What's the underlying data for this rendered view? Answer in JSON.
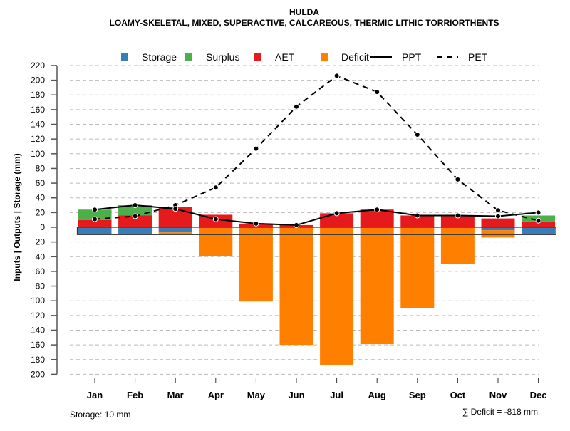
{
  "chart_data": {
    "type": "bar",
    "title": "HULDA",
    "subtitle": "LOAMY-SKELETAL, MIXED, SUPERACTIVE, CALCAREOUS, THERMIC LITHIC TORRIORTHENTS",
    "xlabel": "",
    "ylabel": "Inputs | Outputs | Storage    (mm)",
    "ylim": [
      -200,
      220
    ],
    "y_ticks": [
      "220",
      "200",
      "180",
      "160",
      "140",
      "120",
      "100",
      "80",
      "60",
      "40",
      "20",
      "0",
      "20",
      "40",
      "60",
      "80",
      "100",
      "120",
      "140",
      "160",
      "180",
      "200"
    ],
    "y_tick_values": [
      220,
      200,
      180,
      160,
      140,
      120,
      100,
      80,
      60,
      40,
      20,
      0,
      -20,
      -40,
      -60,
      -80,
      -100,
      -120,
      -140,
      -160,
      -180,
      -200
    ],
    "grid": true,
    "legend_position": "top",
    "categories": [
      "Jan",
      "Feb",
      "Mar",
      "Apr",
      "May",
      "Jun",
      "Jul",
      "Aug",
      "Sep",
      "Oct",
      "Nov",
      "Dec"
    ],
    "legend": [
      {
        "name": "Storage",
        "kind": "box",
        "color": "#377EB8"
      },
      {
        "name": "Surplus",
        "kind": "box",
        "color": "#4DAF4A"
      },
      {
        "name": "AET",
        "kind": "box",
        "color": "#E41A1C"
      },
      {
        "name": "Deficit",
        "kind": "box",
        "color": "#FF7F00"
      },
      {
        "name": "PPT",
        "kind": "solid-line",
        "color": "#000000"
      },
      {
        "name": "PET",
        "kind": "dashed-line",
        "color": "#000000"
      }
    ],
    "series": [
      {
        "name": "AET",
        "values": [
          10,
          16,
          28,
          17,
          5,
          3,
          19,
          24,
          16,
          15,
          12,
          8
        ]
      },
      {
        "name": "Surplus",
        "values": [
          14,
          14,
          0,
          0,
          0,
          0,
          0,
          0,
          0,
          0,
          0,
          8
        ]
      },
      {
        "name": "Storage",
        "values": [
          10,
          10,
          7,
          0,
          0,
          0,
          0,
          0,
          0,
          0,
          4,
          10
        ]
      },
      {
        "name": "Deficit",
        "values": [
          0,
          0,
          2,
          39,
          101,
          160,
          187,
          159,
          110,
          50,
          10,
          0
        ]
      },
      {
        "name": "PPT",
        "values": [
          24,
          30,
          25,
          11,
          5,
          3,
          19,
          24,
          16,
          16,
          15,
          20
        ]
      },
      {
        "name": "PET",
        "values": [
          11,
          15,
          30,
          54,
          107,
          164,
          206,
          184,
          126,
          65,
          23,
          9
        ]
      }
    ],
    "storage_capacity": 10,
    "annotations": {
      "storage": "Storage: 10 mm",
      "deficit_sum": "∑ Deficit = -818 mm"
    }
  }
}
